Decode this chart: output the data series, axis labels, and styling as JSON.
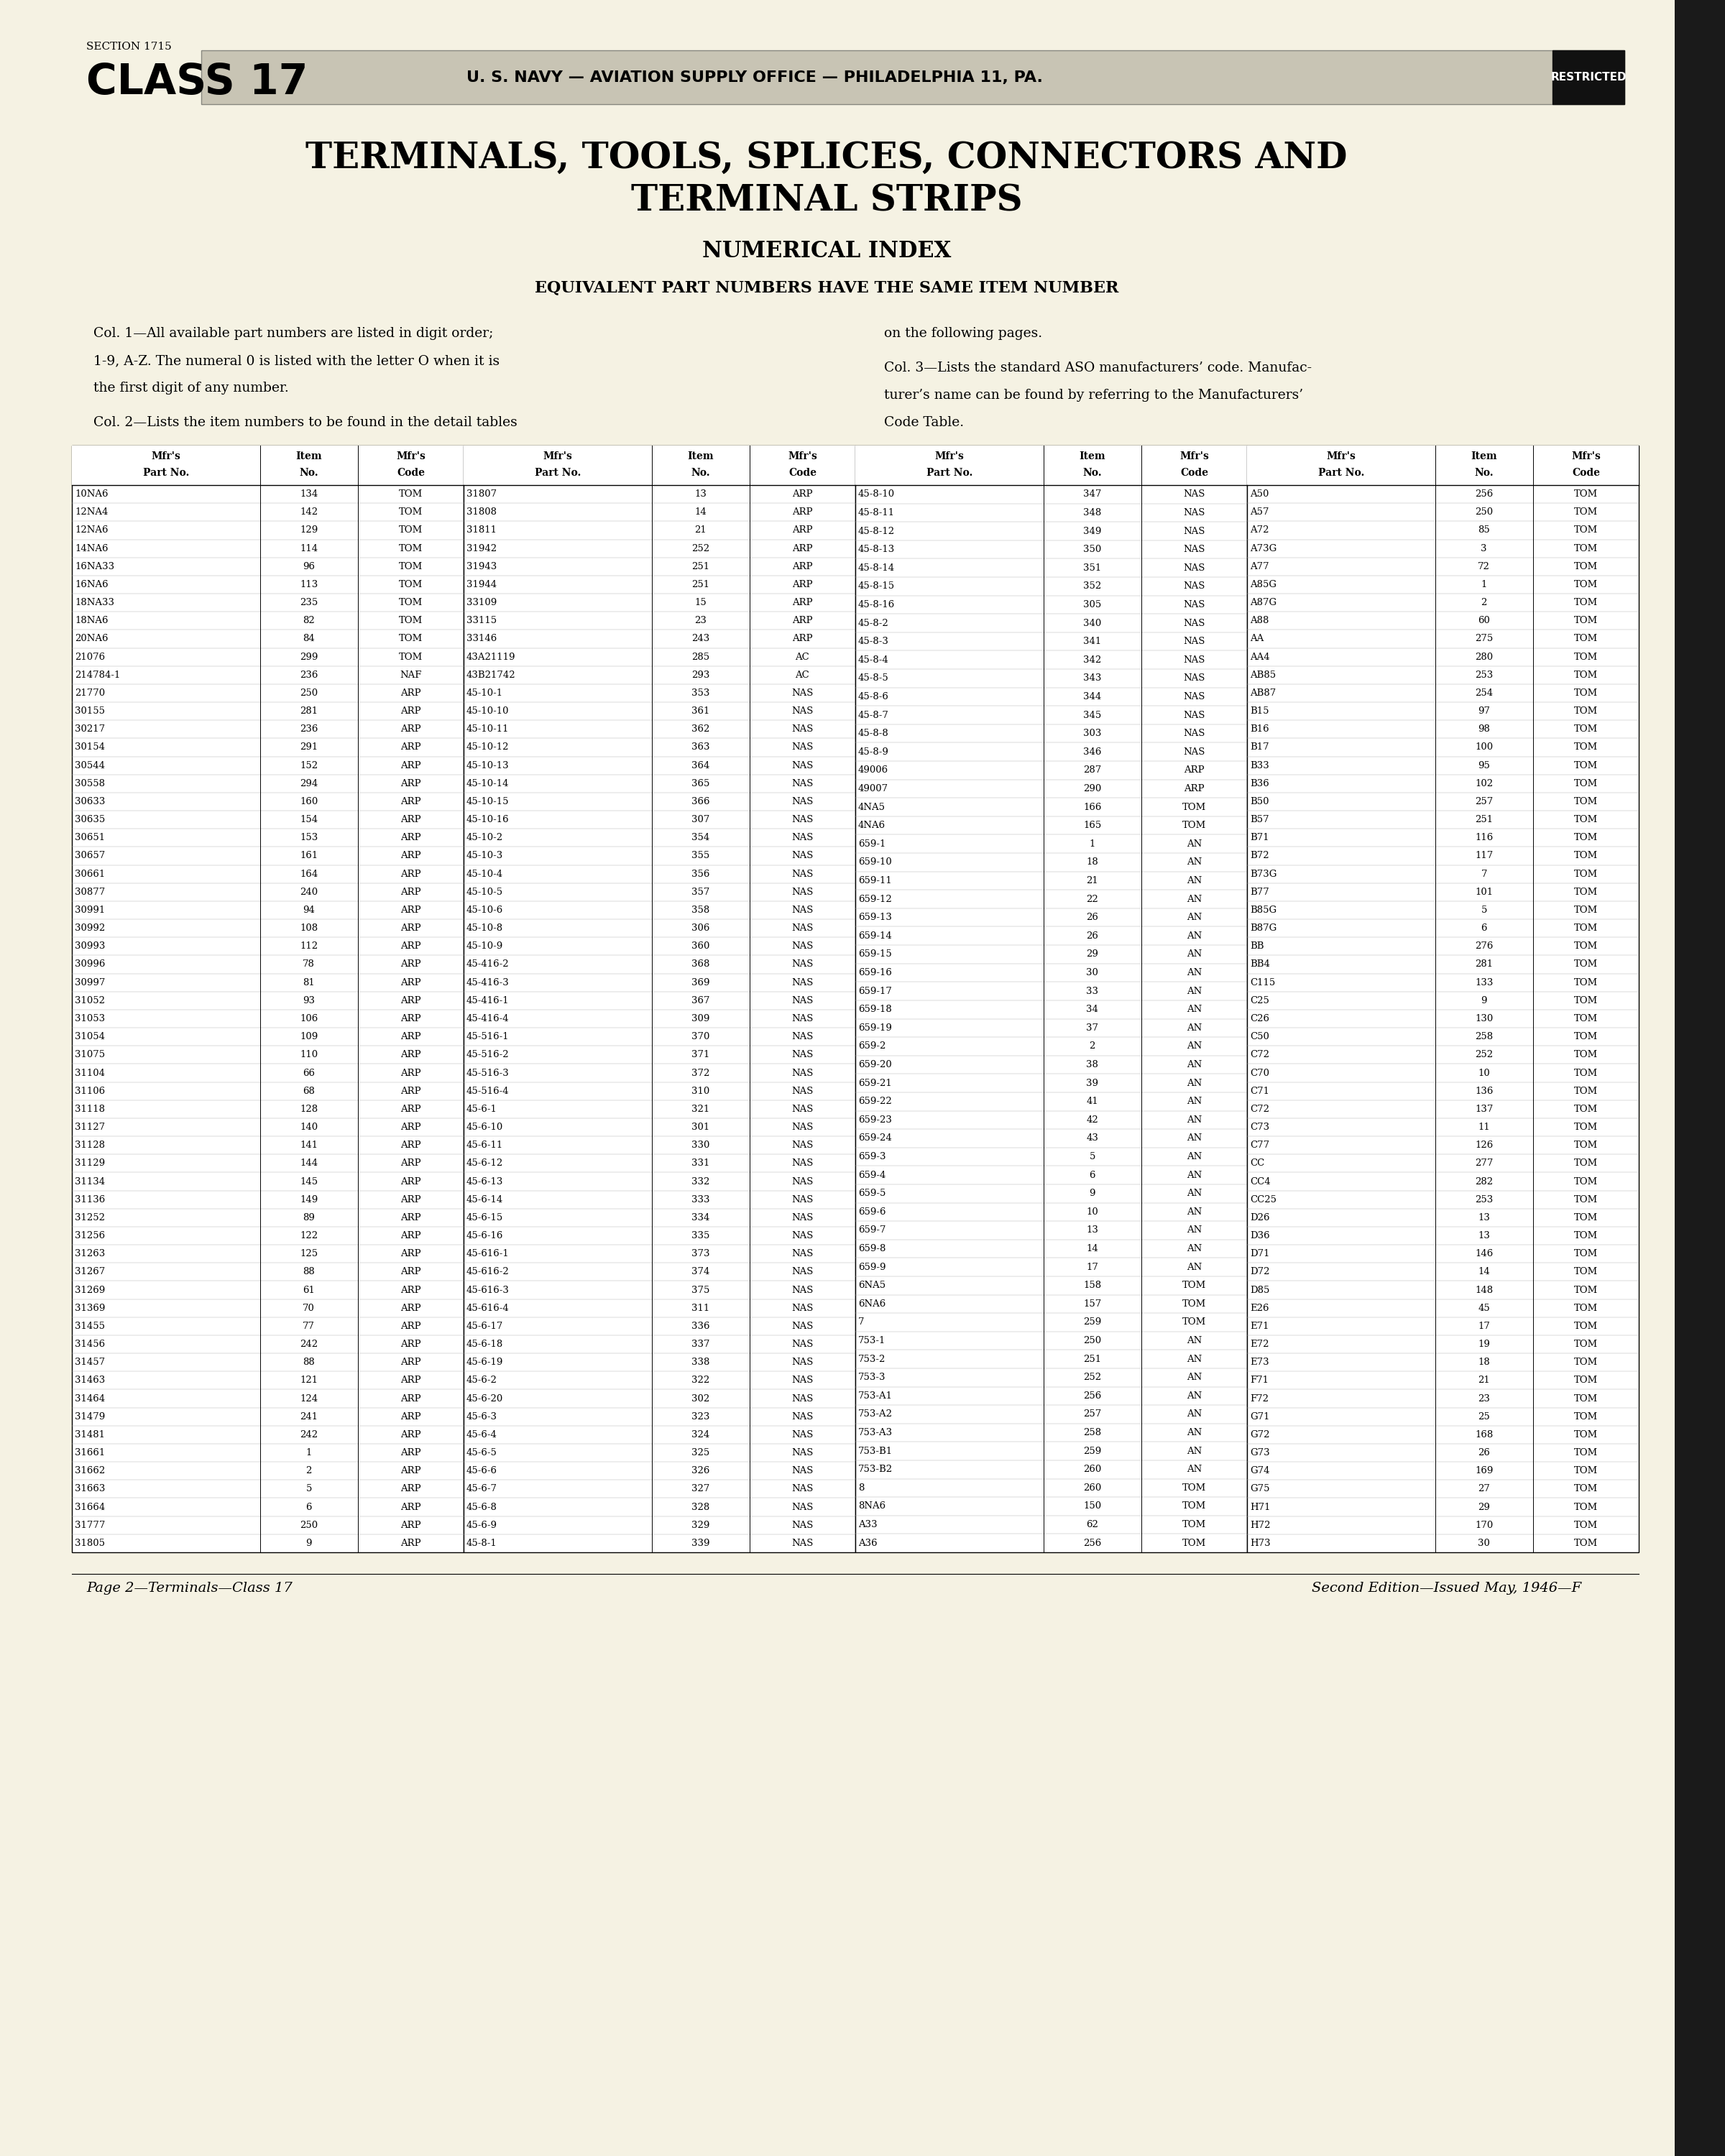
{
  "bg_color": "#f5f2e3",
  "section_text": "SECTION 1715",
  "class_text": "CLASS 17",
  "header_banner_text": "U. S. NAVY — AVIATION SUPPLY OFFICE — PHILADELPHIA 11, PA.",
  "restricted_text": "RESTRICTED",
  "title_line1": "TERMINALS, TOOLS, SPLICES, CONNECTORS AND",
  "title_line2": "TERMINAL STRIPS",
  "subtitle": "NUMERICAL INDEX",
  "equiv_text": "EQUIVALENT PART NUMBERS HAVE THE SAME ITEM NUMBER",
  "col1_text1": "Col. 1—All available part numbers are listed in digit order;",
  "col1_text2": "1-9, A-Z. The numeral 0 is listed with the letter O when it is",
  "col1_text3": "the first digit of any number.",
  "col1_text4": "Col. 2—Lists the item numbers to be found in the detail tables",
  "col2_text1": "on the following pages.",
  "col2_text2": "Col. 3—Lists the standard ASO manufacturers’ code. Manufac-",
  "col2_text3": "turer’s name can be found by referring to the Manufacturers’",
  "col2_text4": "Code Table.",
  "table_headers": [
    "Mfr's\nPart No.",
    "Item\nNo.",
    "Mfr's\nCode",
    "Mfr's\nPart No.",
    "Item\nNo.",
    "Mfr's\nCode",
    "Mfr's\nPart No.",
    "Item\nNo.",
    "Mfr's\nCode",
    "Mfr's\nPart No.",
    "Item\nNo.",
    "Mfr's\nCode"
  ],
  "col1_data": [
    [
      "10NA6",
      "134",
      "TOM"
    ],
    [
      "12NA4",
      "142",
      "TOM"
    ],
    [
      "12NA6",
      "129",
      "TOM"
    ],
    [
      "14NA6",
      "114",
      "TOM"
    ],
    [
      "16NA33",
      "96",
      "TOM"
    ],
    [
      "16NA6",
      "113",
      "TOM"
    ],
    [
      "18NA33",
      "235",
      "TOM"
    ],
    [
      "18NA6",
      "82",
      "TOM"
    ],
    [
      "20NA6",
      "84",
      "TOM"
    ],
    [
      "21076",
      "299",
      "TOM"
    ],
    [
      "214784-1",
      "236",
      "NAF"
    ],
    [
      "21770",
      "250",
      "ARP"
    ],
    [
      "30155",
      "281",
      "ARP"
    ],
    [
      "30217",
      "236",
      "ARP"
    ],
    [
      "30154",
      "291",
      "ARP"
    ],
    [
      "30544",
      "152",
      "ARP"
    ],
    [
      "30558",
      "294",
      "ARP"
    ],
    [
      "30633",
      "160",
      "ARP"
    ],
    [
      "30635",
      "154",
      "ARP"
    ],
    [
      "30651",
      "153",
      "ARP"
    ],
    [
      "30657",
      "161",
      "ARP"
    ],
    [
      "30661",
      "164",
      "ARP"
    ],
    [
      "30877",
      "240",
      "ARP"
    ],
    [
      "30991",
      "94",
      "ARP"
    ],
    [
      "30992",
      "108",
      "ARP"
    ],
    [
      "30993",
      "112",
      "ARP"
    ],
    [
      "30996",
      "78",
      "ARP"
    ],
    [
      "30997",
      "81",
      "ARP"
    ],
    [
      "31052",
      "93",
      "ARP"
    ],
    [
      "31053",
      "106",
      "ARP"
    ],
    [
      "31054",
      "109",
      "ARP"
    ],
    [
      "31075",
      "110",
      "ARP"
    ],
    [
      "31104",
      "66",
      "ARP"
    ],
    [
      "31106",
      "68",
      "ARP"
    ],
    [
      "31118",
      "128",
      "ARP"
    ],
    [
      "31127",
      "140",
      "ARP"
    ],
    [
      "31128",
      "141",
      "ARP"
    ],
    [
      "31129",
      "144",
      "ARP"
    ],
    [
      "31134",
      "145",
      "ARP"
    ],
    [
      "31136",
      "149",
      "ARP"
    ],
    [
      "31252",
      "89",
      "ARP"
    ],
    [
      "31256",
      "122",
      "ARP"
    ],
    [
      "31263",
      "125",
      "ARP"
    ],
    [
      "31267",
      "88",
      "ARP"
    ],
    [
      "31269",
      "61",
      "ARP"
    ],
    [
      "31369",
      "70",
      "ARP"
    ],
    [
      "31455",
      "77",
      "ARP"
    ],
    [
      "31456",
      "242",
      "ARP"
    ],
    [
      "31457",
      "88",
      "ARP"
    ],
    [
      "31463",
      "121",
      "ARP"
    ],
    [
      "31464",
      "124",
      "ARP"
    ],
    [
      "31479",
      "241",
      "ARP"
    ],
    [
      "31481",
      "242",
      "ARP"
    ],
    [
      "31661",
      "1",
      "ARP"
    ],
    [
      "31662",
      "2",
      "ARP"
    ],
    [
      "31663",
      "5",
      "ARP"
    ],
    [
      "31664",
      "6",
      "ARP"
    ],
    [
      "31777",
      "250",
      "ARP"
    ],
    [
      "31805",
      "9",
      "ARP"
    ]
  ],
  "col2_data": [
    [
      "31807",
      "13",
      "ARP"
    ],
    [
      "31808",
      "14",
      "ARP"
    ],
    [
      "31811",
      "21",
      "ARP"
    ],
    [
      "31942",
      "252",
      "ARP"
    ],
    [
      "31943",
      "251",
      "ARP"
    ],
    [
      "31944",
      "251",
      "ARP"
    ],
    [
      "33109",
      "15",
      "ARP"
    ],
    [
      "33115",
      "23",
      "ARP"
    ],
    [
      "33146",
      "243",
      "ARP"
    ],
    [
      "43A21119",
      "285",
      "AC"
    ],
    [
      "43B21742",
      "293",
      "AC"
    ],
    [
      "45-10-1",
      "353",
      "NAS"
    ],
    [
      "45-10-10",
      "361",
      "NAS"
    ],
    [
      "45-10-11",
      "362",
      "NAS"
    ],
    [
      "45-10-12",
      "363",
      "NAS"
    ],
    [
      "45-10-13",
      "364",
      "NAS"
    ],
    [
      "45-10-14",
      "365",
      "NAS"
    ],
    [
      "45-10-15",
      "366",
      "NAS"
    ],
    [
      "45-10-16",
      "307",
      "NAS"
    ],
    [
      "45-10-2",
      "354",
      "NAS"
    ],
    [
      "45-10-3",
      "355",
      "NAS"
    ],
    [
      "45-10-4",
      "356",
      "NAS"
    ],
    [
      "45-10-5",
      "357",
      "NAS"
    ],
    [
      "45-10-6",
      "358",
      "NAS"
    ],
    [
      "45-10-8",
      "306",
      "NAS"
    ],
    [
      "45-10-9",
      "360",
      "NAS"
    ],
    [
      "45-416-2",
      "368",
      "NAS"
    ],
    [
      "45-416-3",
      "369",
      "NAS"
    ],
    [
      "45-416-1",
      "367",
      "NAS"
    ],
    [
      "45-416-4",
      "309",
      "NAS"
    ],
    [
      "45-516-1",
      "370",
      "NAS"
    ],
    [
      "45-516-2",
      "371",
      "NAS"
    ],
    [
      "45-516-3",
      "372",
      "NAS"
    ],
    [
      "45-516-4",
      "310",
      "NAS"
    ],
    [
      "45-6-1",
      "321",
      "NAS"
    ],
    [
      "45-6-10",
      "301",
      "NAS"
    ],
    [
      "45-6-11",
      "330",
      "NAS"
    ],
    [
      "45-6-12",
      "331",
      "NAS"
    ],
    [
      "45-6-13",
      "332",
      "NAS"
    ],
    [
      "45-6-14",
      "333",
      "NAS"
    ],
    [
      "45-6-15",
      "334",
      "NAS"
    ],
    [
      "45-6-16",
      "335",
      "NAS"
    ],
    [
      "45-616-1",
      "373",
      "NAS"
    ],
    [
      "45-616-2",
      "374",
      "NAS"
    ],
    [
      "45-616-3",
      "375",
      "NAS"
    ],
    [
      "45-616-4",
      "311",
      "NAS"
    ],
    [
      "45-6-17",
      "336",
      "NAS"
    ],
    [
      "45-6-18",
      "337",
      "NAS"
    ],
    [
      "45-6-19",
      "338",
      "NAS"
    ],
    [
      "45-6-2",
      "322",
      "NAS"
    ],
    [
      "45-6-20",
      "302",
      "NAS"
    ],
    [
      "45-6-3",
      "323",
      "NAS"
    ],
    [
      "45-6-4",
      "324",
      "NAS"
    ],
    [
      "45-6-5",
      "325",
      "NAS"
    ],
    [
      "45-6-6",
      "326",
      "NAS"
    ],
    [
      "45-6-7",
      "327",
      "NAS"
    ],
    [
      "45-6-8",
      "328",
      "NAS"
    ],
    [
      "45-6-9",
      "329",
      "NAS"
    ],
    [
      "45-8-1",
      "339",
      "NAS"
    ]
  ],
  "col3_data": [
    [
      "45-8-10",
      "347",
      "NAS"
    ],
    [
      "45-8-11",
      "348",
      "NAS"
    ],
    [
      "45-8-12",
      "349",
      "NAS"
    ],
    [
      "45-8-13",
      "350",
      "NAS"
    ],
    [
      "45-8-14",
      "351",
      "NAS"
    ],
    [
      "45-8-15",
      "352",
      "NAS"
    ],
    [
      "45-8-16",
      "305",
      "NAS"
    ],
    [
      "45-8-2",
      "340",
      "NAS"
    ],
    [
      "45-8-3",
      "341",
      "NAS"
    ],
    [
      "45-8-4",
      "342",
      "NAS"
    ],
    [
      "45-8-5",
      "343",
      "NAS"
    ],
    [
      "45-8-6",
      "344",
      "NAS"
    ],
    [
      "45-8-7",
      "345",
      "NAS"
    ],
    [
      "45-8-8",
      "303",
      "NAS"
    ],
    [
      "45-8-9",
      "346",
      "NAS"
    ],
    [
      "49006",
      "287",
      "ARP"
    ],
    [
      "49007",
      "290",
      "ARP"
    ],
    [
      "4NA5",
      "166",
      "TOM"
    ],
    [
      "4NA6",
      "165",
      "TOM"
    ],
    [
      "659-1",
      "1",
      "AN"
    ],
    [
      "659-10",
      "18",
      "AN"
    ],
    [
      "659-11",
      "21",
      "AN"
    ],
    [
      "659-12",
      "22",
      "AN"
    ],
    [
      "659-13",
      "26",
      "AN"
    ],
    [
      "659-14",
      "26",
      "AN"
    ],
    [
      "659-15",
      "29",
      "AN"
    ],
    [
      "659-16",
      "30",
      "AN"
    ],
    [
      "659-17",
      "33",
      "AN"
    ],
    [
      "659-18",
      "34",
      "AN"
    ],
    [
      "659-19",
      "37",
      "AN"
    ],
    [
      "659-2",
      "2",
      "AN"
    ],
    [
      "659-20",
      "38",
      "AN"
    ],
    [
      "659-21",
      "39",
      "AN"
    ],
    [
      "659-22",
      "41",
      "AN"
    ],
    [
      "659-23",
      "42",
      "AN"
    ],
    [
      "659-24",
      "43",
      "AN"
    ],
    [
      "659-3",
      "5",
      "AN"
    ],
    [
      "659-4",
      "6",
      "AN"
    ],
    [
      "659-5",
      "9",
      "AN"
    ],
    [
      "659-6",
      "10",
      "AN"
    ],
    [
      "659-7",
      "13",
      "AN"
    ],
    [
      "659-8",
      "14",
      "AN"
    ],
    [
      "659-9",
      "17",
      "AN"
    ],
    [
      "6NA5",
      "158",
      "TOM"
    ],
    [
      "6NA6",
      "157",
      "TOM"
    ],
    [
      "7",
      "259",
      "TOM"
    ],
    [
      "753-1",
      "250",
      "AN"
    ],
    [
      "753-2",
      "251",
      "AN"
    ],
    [
      "753-3",
      "252",
      "AN"
    ],
    [
      "753-A1",
      "256",
      "AN"
    ],
    [
      "753-A2",
      "257",
      "AN"
    ],
    [
      "753-A3",
      "258",
      "AN"
    ],
    [
      "753-B1",
      "259",
      "AN"
    ],
    [
      "753-B2",
      "260",
      "AN"
    ],
    [
      "8",
      "260",
      "TOM"
    ],
    [
      "8NA6",
      "150",
      "TOM"
    ],
    [
      "A33",
      "62",
      "TOM"
    ],
    [
      "A36",
      "256",
      "TOM"
    ]
  ],
  "col4_data": [
    [
      "A50",
      "256",
      "TOM"
    ],
    [
      "A57",
      "250",
      "TOM"
    ],
    [
      "A72",
      "85",
      "TOM"
    ],
    [
      "A73G",
      "3",
      "TOM"
    ],
    [
      "A77",
      "72",
      "TOM"
    ],
    [
      "A85G",
      "1",
      "TOM"
    ],
    [
      "A87G",
      "2",
      "TOM"
    ],
    [
      "A88",
      "60",
      "TOM"
    ],
    [
      "AA",
      "275",
      "TOM"
    ],
    [
      "AA4",
      "280",
      "TOM"
    ],
    [
      "AB85",
      "253",
      "TOM"
    ],
    [
      "AB87",
      "254",
      "TOM"
    ],
    [
      "B15",
      "97",
      "TOM"
    ],
    [
      "B16",
      "98",
      "TOM"
    ],
    [
      "B17",
      "100",
      "TOM"
    ],
    [
      "B33",
      "95",
      "TOM"
    ],
    [
      "B36",
      "102",
      "TOM"
    ],
    [
      "B50",
      "257",
      "TOM"
    ],
    [
      "B57",
      "251",
      "TOM"
    ],
    [
      "B71",
      "116",
      "TOM"
    ],
    [
      "B72",
      "117",
      "TOM"
    ],
    [
      "B73G",
      "7",
      "TOM"
    ],
    [
      "B77",
      "101",
      "TOM"
    ],
    [
      "B85G",
      "5",
      "TOM"
    ],
    [
      "B87G",
      "6",
      "TOM"
    ],
    [
      "BB",
      "276",
      "TOM"
    ],
    [
      "BB4",
      "281",
      "TOM"
    ],
    [
      "C115",
      "133",
      "TOM"
    ],
    [
      "C25",
      "9",
      "TOM"
    ],
    [
      "C26",
      "130",
      "TOM"
    ],
    [
      "C50",
      "258",
      "TOM"
    ],
    [
      "C72",
      "252",
      "TOM"
    ],
    [
      "C70",
      "10",
      "TOM"
    ],
    [
      "C71",
      "136",
      "TOM"
    ],
    [
      "C72",
      "137",
      "TOM"
    ],
    [
      "C73",
      "11",
      "TOM"
    ],
    [
      "C77",
      "126",
      "TOM"
    ],
    [
      "CC",
      "277",
      "TOM"
    ],
    [
      "CC4",
      "282",
      "TOM"
    ],
    [
      "CC25",
      "253",
      "TOM"
    ],
    [
      "D26",
      "13",
      "TOM"
    ],
    [
      "D36",
      "13",
      "TOM"
    ],
    [
      "D71",
      "146",
      "TOM"
    ],
    [
      "D72",
      "14",
      "TOM"
    ],
    [
      "D85",
      "148",
      "TOM"
    ],
    [
      "E26",
      "45",
      "TOM"
    ],
    [
      "E71",
      "17",
      "TOM"
    ],
    [
      "E72",
      "19",
      "TOM"
    ],
    [
      "E73",
      "18",
      "TOM"
    ],
    [
      "F71",
      "21",
      "TOM"
    ],
    [
      "F72",
      "23",
      "TOM"
    ],
    [
      "G71",
      "25",
      "TOM"
    ],
    [
      "G72",
      "168",
      "TOM"
    ],
    [
      "G73",
      "26",
      "TOM"
    ],
    [
      "G74",
      "169",
      "TOM"
    ],
    [
      "G75",
      "27",
      "TOM"
    ],
    [
      "H71",
      "29",
      "TOM"
    ],
    [
      "H72",
      "170",
      "TOM"
    ],
    [
      "H73",
      "30",
      "TOM"
    ]
  ],
  "footer_left": "Page 2—Terminals—Class 17",
  "footer_right": "Second Edition—Issued May, 1946—F"
}
